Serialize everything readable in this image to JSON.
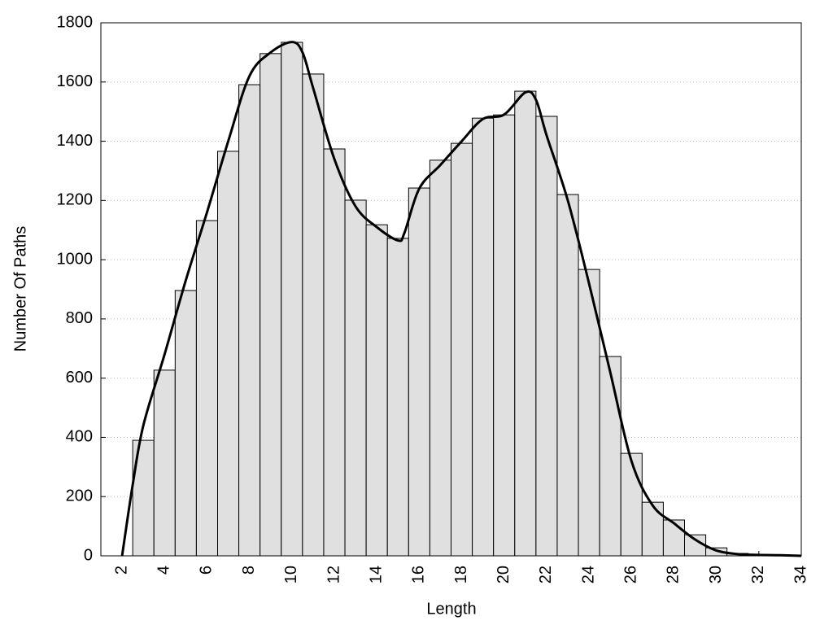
{
  "chart_data": {
    "type": "histogram",
    "xlabel": "Length",
    "ylabel": "Number Of Paths",
    "bins": [
      2.5,
      3.5,
      4.5,
      5.5,
      6.5,
      7.5,
      8.5,
      9.5,
      10.5,
      11.5,
      12.5,
      13.5,
      14.5,
      15.5,
      16.5,
      17.5,
      18.5,
      19.5,
      20.5,
      21.5,
      22.5,
      23.5,
      24.5,
      25.5,
      26.5,
      27.5,
      28.5,
      29.5,
      30.5,
      31.5,
      32.5,
      33.5
    ],
    "values": [
      390,
      627,
      896,
      1132,
      1366,
      1591,
      1696,
      1734,
      1627,
      1374,
      1201,
      1118,
      1072,
      1242,
      1336,
      1393,
      1478,
      1489,
      1569,
      1484,
      1220,
      967,
      673,
      346,
      181,
      121,
      71,
      27,
      8,
      4,
      2
    ],
    "color": "#e0e0e0",
    "line": {
      "color": "#000000",
      "x": [
        2,
        2.5,
        3,
        4,
        5,
        6,
        7,
        8,
        9,
        10,
        10.5,
        11,
        12,
        13,
        14,
        15,
        15.3,
        16,
        17,
        18,
        19,
        20,
        21,
        21.5,
        22,
        23,
        24,
        25,
        26,
        27,
        28,
        29,
        30,
        31,
        32,
        33,
        34
      ],
      "values": [
        0,
        240,
        440,
        680,
        930,
        1160,
        1400,
        1620,
        1700,
        1735,
        1700,
        1580,
        1340,
        1180,
        1110,
        1065,
        1090,
        1240,
        1320,
        1400,
        1475,
        1490,
        1565,
        1540,
        1420,
        1200,
        920,
        620,
        320,
        170,
        110,
        55,
        18,
        6,
        3,
        2,
        0
      ]
    },
    "xlim": [
      1,
      34
    ],
    "ylim": [
      0,
      1800
    ],
    "xticks": [
      2,
      4,
      6,
      8,
      10,
      12,
      14,
      16,
      18,
      20,
      22,
      24,
      26,
      28,
      30,
      32,
      34
    ],
    "yticks": [
      0,
      200,
      400,
      600,
      800,
      1000,
      1200,
      1400,
      1600,
      1800
    ],
    "grid": true
  }
}
